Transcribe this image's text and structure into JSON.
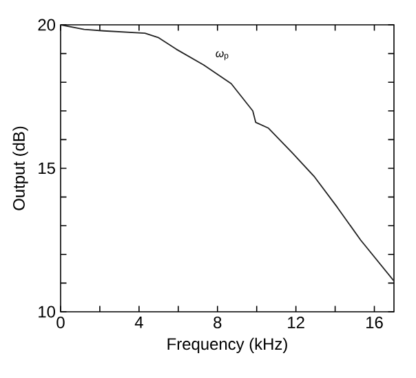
{
  "chart_data": {
    "type": "line",
    "xlabel": "Frequency (kHz)",
    "ylabel": "Output (dB)",
    "x": [
      0,
      1.2,
      2.2,
      4.3,
      5.0,
      5.9,
      7.3,
      8.7,
      9.8,
      9.95,
      10.6,
      11.8,
      12.95,
      14.1,
      15.3,
      17
    ],
    "series": [
      {
        "color": "#222222",
        "values": [
          20,
          19.84,
          19.79,
          19.71,
          19.55,
          19.15,
          18.6,
          17.95,
          17.0,
          16.6,
          16.4,
          15.55,
          14.7,
          13.65,
          12.5,
          11.07
        ]
      }
    ],
    "xlim": [
      0,
      17
    ],
    "ylim": [
      10,
      20
    ],
    "xticks": [
      0,
      {
        "value": 2,
        "label": null
      },
      4,
      {
        "value": 6,
        "label": null
      },
      8,
      {
        "value": 10,
        "label": null
      },
      12,
      {
        "value": 14,
        "label": null
      },
      16
    ],
    "yticks": [
      10,
      {
        "value": 11,
        "label": null
      },
      {
        "value": 12,
        "label": null
      },
      {
        "value": 13,
        "label": null
      },
      {
        "value": 14,
        "label": null
      },
      15,
      {
        "value": 16,
        "label": null
      },
      {
        "value": 17,
        "label": null
      },
      {
        "value": 18,
        "label": null
      },
      {
        "value": 19,
        "label": null
      },
      20
    ],
    "annotations": [
      "*ω*$_{p}$"
    ],
    "marker": "none",
    "line_style": "solid"
  }
}
